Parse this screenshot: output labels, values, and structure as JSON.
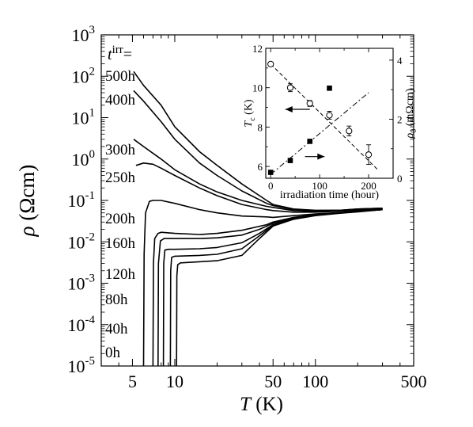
{
  "chart_data": [
    {
      "type": "line",
      "xscale": "log",
      "yscale": "log",
      "xlim": [
        3,
        500
      ],
      "ylim": [
        1e-05,
        1000
      ],
      "xlabel_italic": "T",
      "xlabel_rest": " (K)",
      "ylabel_italic": "ρ",
      "ylabel_rest": " (Ωcm)",
      "x_ticks": [
        {
          "v": 5,
          "label": "5"
        },
        {
          "v": 10,
          "label": "10"
        },
        {
          "v": 50,
          "label": "50"
        },
        {
          "v": 100,
          "label": "100"
        },
        {
          "v": 500,
          "label": "500"
        }
      ],
      "y_ticks": [
        {
          "v": 1e-05,
          "mant": "10",
          "exp": "-5"
        },
        {
          "v": 0.0001,
          "mant": "10",
          "exp": "-4"
        },
        {
          "v": 0.001,
          "mant": "10",
          "exp": "-3"
        },
        {
          "v": 0.01,
          "mant": "10",
          "exp": "-2"
        },
        {
          "v": 0.1,
          "mant": "10",
          "exp": "-1"
        },
        {
          "v": 1.0,
          "mant": "10",
          "exp": "0"
        },
        {
          "v": 10.0,
          "mant": "10",
          "exp": "1"
        },
        {
          "v": 100.0,
          "mant": "10",
          "exp": "2"
        },
        {
          "v": 1000.0,
          "mant": "10",
          "exp": "3"
        }
      ],
      "legend_title_italic": "t",
      "legend_title_sup": "irr",
      "legend_title_eq": "=",
      "series": [
        {
          "name": "500h",
          "points": [
            [
              5.1,
              130
            ],
            [
              6,
              60
            ],
            [
              8,
              20
            ],
            [
              10,
              6
            ],
            [
              15,
              1.5
            ],
            [
              20,
              0.7
            ],
            [
              30,
              0.25
            ],
            [
              45,
              0.1
            ],
            [
              50,
              0.08
            ],
            [
              70,
              0.062
            ],
            [
              100,
              0.058
            ],
            [
              150,
              0.058
            ],
            [
              200,
              0.062
            ],
            [
              300,
              0.065
            ]
          ]
        },
        {
          "name": "400h",
          "points": [
            [
              5.1,
              45
            ],
            [
              6,
              25
            ],
            [
              8,
              8
            ],
            [
              10,
              3
            ],
            [
              15,
              0.8
            ],
            [
              20,
              0.4
            ],
            [
              30,
              0.17
            ],
            [
              45,
              0.085
            ],
            [
              50,
              0.075
            ],
            [
              70,
              0.06
            ],
            [
              100,
              0.057
            ],
            [
              150,
              0.058
            ],
            [
              200,
              0.062
            ],
            [
              300,
              0.065
            ]
          ]
        },
        {
          "name": "300h",
          "points": [
            [
              5.1,
              3
            ],
            [
              6,
              2
            ],
            [
              8,
              1
            ],
            [
              10,
              0.55
            ],
            [
              15,
              0.25
            ],
            [
              20,
              0.16
            ],
            [
              30,
              0.1
            ],
            [
              45,
              0.072
            ],
            [
              50,
              0.068
            ],
            [
              70,
              0.057
            ],
            [
              100,
              0.055
            ],
            [
              150,
              0.057
            ],
            [
              200,
              0.06
            ],
            [
              300,
              0.063
            ]
          ]
        },
        {
          "name": "250h",
          "points": [
            [
              5.3,
              0.7
            ],
            [
              6,
              0.8
            ],
            [
              7,
              0.75
            ],
            [
              8,
              0.6
            ],
            [
              10,
              0.4
            ],
            [
              15,
              0.2
            ],
            [
              20,
              0.13
            ],
            [
              30,
              0.08
            ],
            [
              45,
              0.06
            ],
            [
              50,
              0.057
            ],
            [
              70,
              0.052
            ],
            [
              100,
              0.052
            ],
            [
              150,
              0.055
            ],
            [
              200,
              0.058
            ],
            [
              300,
              0.062
            ]
          ]
        },
        {
          "name": "200h",
          "points": [
            [
              6.0,
              1e-05
            ],
            [
              6.05,
              0.005
            ],
            [
              6.2,
              0.05
            ],
            [
              6.6,
              0.095
            ],
            [
              7,
              0.1
            ],
            [
              8,
              0.1
            ],
            [
              10,
              0.085
            ],
            [
              15,
              0.06
            ],
            [
              20,
              0.05
            ],
            [
              30,
              0.042
            ],
            [
              45,
              0.04
            ],
            [
              50,
              0.039
            ],
            [
              70,
              0.043
            ],
            [
              100,
              0.047
            ],
            [
              150,
              0.051
            ],
            [
              200,
              0.055
            ],
            [
              300,
              0.06
            ]
          ]
        },
        {
          "name": "160h",
          "points": [
            [
              7.0,
              1e-05
            ],
            [
              7.05,
              0.003
            ],
            [
              7.2,
              0.012
            ],
            [
              7.6,
              0.016
            ],
            [
              8,
              0.017
            ],
            [
              10,
              0.016
            ],
            [
              15,
              0.015
            ],
            [
              20,
              0.016
            ],
            [
              30,
              0.019
            ],
            [
              45,
              0.026
            ],
            [
              50,
              0.03
            ],
            [
              70,
              0.039
            ],
            [
              100,
              0.045
            ],
            [
              150,
              0.05
            ],
            [
              200,
              0.054
            ],
            [
              300,
              0.06
            ]
          ]
        },
        {
          "name": "120h",
          "points": [
            [
              7.6,
              1e-05
            ],
            [
              7.65,
              0.003
            ],
            [
              7.9,
              0.0105
            ],
            [
              8.4,
              0.012
            ],
            [
              10,
              0.012
            ],
            [
              15,
              0.012
            ],
            [
              20,
              0.0125
            ],
            [
              30,
              0.0145
            ],
            [
              40,
              0.02
            ],
            [
              50,
              0.028
            ],
            [
              70,
              0.038
            ],
            [
              100,
              0.045
            ],
            [
              150,
              0.05
            ],
            [
              200,
              0.055
            ],
            [
              300,
              0.06
            ]
          ]
        },
        {
          "name": "80h",
          "points": [
            [
              8.3,
              1e-05
            ],
            [
              8.35,
              0.003
            ],
            [
              8.5,
              0.0063
            ],
            [
              9,
              0.0066
            ],
            [
              10,
              0.0066
            ],
            [
              15,
              0.0068
            ],
            [
              20,
              0.0073
            ],
            [
              30,
              0.0095
            ],
            [
              40,
              0.016
            ],
            [
              50,
              0.026
            ],
            [
              70,
              0.037
            ],
            [
              100,
              0.044
            ],
            [
              150,
              0.05
            ],
            [
              200,
              0.054
            ],
            [
              300,
              0.06
            ]
          ]
        },
        {
          "name": "40h",
          "points": [
            [
              9.3,
              1e-05
            ],
            [
              9.35,
              0.002
            ],
            [
              9.5,
              0.0042
            ],
            [
              10,
              0.0045
            ],
            [
              15,
              0.0047
            ],
            [
              20,
              0.005
            ],
            [
              30,
              0.0068
            ],
            [
              40,
              0.014
            ],
            [
              50,
              0.025
            ],
            [
              70,
              0.036
            ],
            [
              100,
              0.044
            ],
            [
              150,
              0.05
            ],
            [
              200,
              0.054
            ],
            [
              300,
              0.06
            ]
          ]
        },
        {
          "name": "0h",
          "points": [
            [
              10.3,
              1e-05
            ],
            [
              10.35,
              0.0015
            ],
            [
              10.5,
              0.0028
            ],
            [
              11,
              0.0031
            ],
            [
              15,
              0.0033
            ],
            [
              20,
              0.0035
            ],
            [
              30,
              0.0047
            ],
            [
              40,
              0.012
            ],
            [
              50,
              0.024
            ],
            [
              70,
              0.035
            ],
            [
              100,
              0.043
            ],
            [
              150,
              0.049
            ],
            [
              200,
              0.053
            ],
            [
              300,
              0.06
            ]
          ]
        }
      ]
    },
    {
      "type": "scatter",
      "inset": true,
      "xlim": [
        -10,
        250
      ],
      "ylim_left": [
        5.4,
        12
      ],
      "ylim_right": [
        0,
        4.4
      ],
      "xlabel": "irradiation time (hour)",
      "ylabel_left_italic": "T",
      "ylabel_left_sub": "c",
      "ylabel_left_rest": " (K)",
      "ylabel_right_italic": "ρ",
      "ylabel_right_sub": "0",
      "ylabel_right_rest": " (mΩcm)",
      "x_ticks": [
        {
          "v": 0,
          "label": "0"
        },
        {
          "v": 100,
          "label": "100"
        },
        {
          "v": 200,
          "label": "200"
        }
      ],
      "y_ticks_left": [
        {
          "v": 6,
          "label": "6"
        },
        {
          "v": 8,
          "label": "8"
        },
        {
          "v": 10,
          "label": "10"
        },
        {
          "v": 12,
          "label": "12"
        }
      ],
      "y_ticks_right": [
        {
          "v": 0,
          "label": "0"
        },
        {
          "v": 2,
          "label": "2"
        },
        {
          "v": 4,
          "label": "4"
        }
      ],
      "series": [
        {
          "marker": "open-circle",
          "axis": "left",
          "points": [
            [
              0,
              11.2
            ],
            [
              40,
              10.0
            ],
            [
              80,
              9.2
            ],
            [
              120,
              8.6
            ],
            [
              160,
              7.8
            ],
            [
              200,
              6.6
            ]
          ],
          "errors": [
            0.08,
            0.2,
            0.15,
            0.2,
            0.25,
            0.5
          ]
        },
        {
          "marker": "filled-square",
          "axis": "right",
          "points": [
            [
              0,
              0.2
            ],
            [
              40,
              0.6
            ],
            [
              80,
              1.25
            ],
            [
              120,
              3.05
            ]
          ]
        }
      ],
      "fit_lines": [
        {
          "style": "dashed",
          "axis": "left",
          "from": [
            0,
            11.2
          ],
          "to": [
            220,
            5.8
          ]
        },
        {
          "style": "dash-dot",
          "axis": "right",
          "from": [
            0,
            0.13
          ],
          "to": [
            200,
            2.9
          ]
        }
      ],
      "arrows": [
        {
          "direction": "left",
          "axis": "left",
          "from_x": 80,
          "to_x": 30,
          "y": 8.9
        },
        {
          "direction": "right",
          "axis": "left",
          "from_x": 70,
          "to_x": 110,
          "y": 6.5
        }
      ]
    }
  ]
}
